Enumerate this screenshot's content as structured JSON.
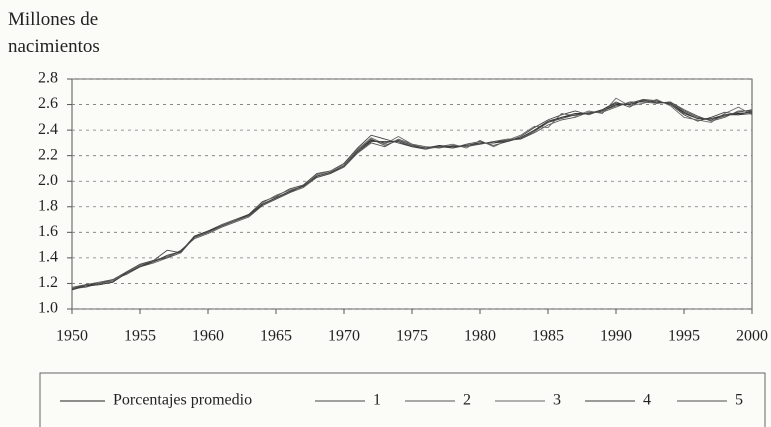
{
  "chart_data": {
    "type": "line",
    "ylabel": "Millones de nacimientos",
    "x": [
      1950,
      1951,
      1952,
      1953,
      1954,
      1955,
      1956,
      1957,
      1958,
      1959,
      1960,
      1961,
      1962,
      1963,
      1964,
      1965,
      1966,
      1967,
      1968,
      1969,
      1970,
      1971,
      1972,
      1973,
      1974,
      1975,
      1976,
      1977,
      1978,
      1979,
      1980,
      1981,
      1982,
      1983,
      1984,
      1985,
      1986,
      1987,
      1988,
      1989,
      1990,
      1991,
      1992,
      1993,
      1994,
      1995,
      1996,
      1997,
      1998,
      1999,
      2000
    ],
    "xlim": [
      1950,
      2000
    ],
    "xticks": [
      1950,
      1955,
      1960,
      1965,
      1970,
      1975,
      1980,
      1985,
      1990,
      1995,
      2000
    ],
    "ylim": [
      1.0,
      2.8
    ],
    "yticks": [
      {
        "value": 1,
        "label": "1.0"
      },
      1.2,
      1.4,
      1.6,
      1.8,
      {
        "value": 2,
        "label": "2.0"
      },
      2.2,
      2.4,
      2.6,
      2.8
    ],
    "grid": true,
    "legend": "bottom",
    "series": [
      {
        "name": "Porcentajes promedio",
        "color": "#222222",
        "values": [
          1.16,
          1.18,
          1.2,
          1.22,
          1.28,
          1.34,
          1.37,
          1.41,
          1.45,
          1.56,
          1.6,
          1.65,
          1.69,
          1.73,
          1.82,
          1.87,
          1.92,
          1.96,
          2.04,
          2.07,
          2.12,
          2.24,
          2.32,
          2.3,
          2.32,
          2.28,
          2.26,
          2.27,
          2.27,
          2.28,
          2.3,
          2.3,
          2.32,
          2.34,
          2.4,
          2.46,
          2.5,
          2.52,
          2.53,
          2.55,
          2.6,
          2.6,
          2.63,
          2.62,
          2.61,
          2.54,
          2.49,
          2.48,
          2.52,
          2.53,
          2.54
        ]
      },
      {
        "name": "1",
        "color": "#444444",
        "values": [
          1.15,
          1.18,
          1.19,
          1.21,
          1.29,
          1.35,
          1.38,
          1.46,
          1.44,
          1.57,
          1.61,
          1.66,
          1.7,
          1.74,
          1.84,
          1.88,
          1.94,
          1.97,
          2.06,
          2.08,
          2.14,
          2.26,
          2.36,
          2.33,
          2.3,
          2.27,
          2.25,
          2.28,
          2.26,
          2.29,
          2.31,
          2.28,
          2.31,
          2.35,
          2.42,
          2.48,
          2.52,
          2.55,
          2.52,
          2.56,
          2.62,
          2.58,
          2.64,
          2.63,
          2.6,
          2.52,
          2.47,
          2.5,
          2.54,
          2.52,
          2.53
        ]
      },
      {
        "name": "2",
        "color": "#555555",
        "values": [
          1.17,
          1.19,
          1.21,
          1.23,
          1.27,
          1.33,
          1.36,
          1.4,
          1.46,
          1.55,
          1.59,
          1.64,
          1.68,
          1.72,
          1.81,
          1.86,
          1.91,
          1.95,
          2.03,
          2.06,
          2.11,
          2.22,
          2.3,
          2.27,
          2.33,
          2.29,
          2.27,
          2.26,
          2.28,
          2.27,
          2.29,
          2.31,
          2.33,
          2.33,
          2.38,
          2.44,
          2.48,
          2.5,
          2.54,
          2.54,
          2.58,
          2.62,
          2.62,
          2.61,
          2.62,
          2.56,
          2.51,
          2.47,
          2.5,
          2.55,
          2.55
        ]
      },
      {
        "name": "3",
        "color": "#666666",
        "values": [
          1.16,
          1.17,
          1.2,
          1.22,
          1.28,
          1.34,
          1.38,
          1.41,
          1.45,
          1.56,
          1.6,
          1.66,
          1.7,
          1.73,
          1.83,
          1.89,
          1.93,
          1.96,
          2.05,
          2.08,
          2.13,
          2.25,
          2.34,
          2.29,
          2.35,
          2.29,
          2.25,
          2.27,
          2.29,
          2.26,
          2.32,
          2.27,
          2.32,
          2.36,
          2.43,
          2.42,
          2.53,
          2.51,
          2.55,
          2.53,
          2.65,
          2.59,
          2.61,
          2.64,
          2.59,
          2.5,
          2.48,
          2.46,
          2.53,
          2.58,
          2.52
        ]
      },
      {
        "name": "4",
        "color": "#3a3a3a",
        "values": [
          1.15,
          1.18,
          1.19,
          1.21,
          1.28,
          1.33,
          1.37,
          1.42,
          1.45,
          1.57,
          1.61,
          1.65,
          1.69,
          1.74,
          1.82,
          1.87,
          1.92,
          1.96,
          2.04,
          2.07,
          2.12,
          2.23,
          2.31,
          2.31,
          2.31,
          2.27,
          2.26,
          2.28,
          2.27,
          2.28,
          2.3,
          2.3,
          2.31,
          2.34,
          2.4,
          2.47,
          2.5,
          2.53,
          2.53,
          2.56,
          2.61,
          2.6,
          2.63,
          2.62,
          2.61,
          2.53,
          2.49,
          2.49,
          2.52,
          2.52,
          2.55
        ]
      },
      {
        "name": "5",
        "color": "#4d4d4d",
        "values": [
          1.16,
          1.19,
          1.2,
          1.23,
          1.29,
          1.35,
          1.38,
          1.4,
          1.44,
          1.56,
          1.6,
          1.65,
          1.69,
          1.73,
          1.81,
          1.86,
          1.91,
          1.97,
          2.03,
          2.06,
          2.12,
          2.24,
          2.33,
          2.28,
          2.32,
          2.28,
          2.26,
          2.27,
          2.26,
          2.28,
          2.29,
          2.31,
          2.32,
          2.33,
          2.39,
          2.46,
          2.49,
          2.52,
          2.53,
          2.55,
          2.59,
          2.61,
          2.64,
          2.61,
          2.62,
          2.55,
          2.5,
          2.48,
          2.51,
          2.54,
          2.56
        ]
      }
    ]
  }
}
